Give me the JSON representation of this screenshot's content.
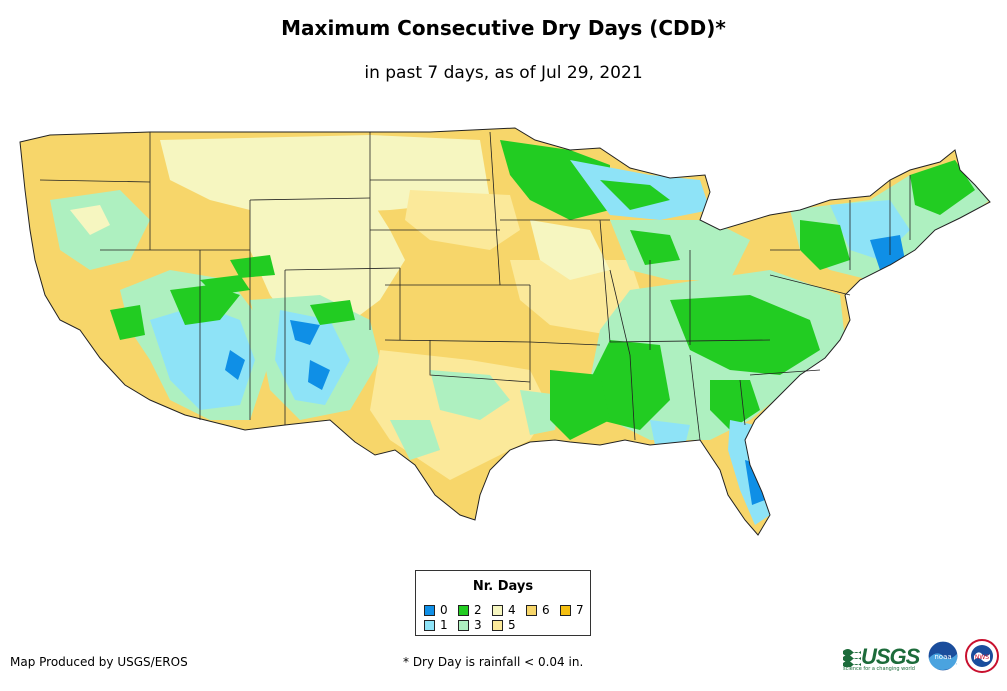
{
  "title": "Maximum Consecutive Dry Days (CDD)*",
  "subtitle": "in past 7 days, as of Jul 29, 2021",
  "legend": {
    "title": "Nr. Days",
    "items": [
      {
        "label": "0",
        "color": "#0f8fe6"
      },
      {
        "label": "1",
        "color": "#8ee3f7"
      },
      {
        "label": "2",
        "color": "#22cc22"
      },
      {
        "label": "3",
        "color": "#aef0c0"
      },
      {
        "label": "4",
        "color": "#f6f6c0"
      },
      {
        "label": "5",
        "color": "#fbe99a"
      },
      {
        "label": "6",
        "color": "#f7d66a"
      },
      {
        "label": "7",
        "color": "#f5bf10"
      }
    ]
  },
  "footer": {
    "credit": "Map Produced by USGS/EROS",
    "note": "* Dry Day is rainfall < 0.04 in."
  },
  "logos": {
    "usgs_text": "USGS",
    "usgs_tagline": "science for a changing world",
    "noaa_text": "noaa",
    "nws_text": "NWS"
  }
}
